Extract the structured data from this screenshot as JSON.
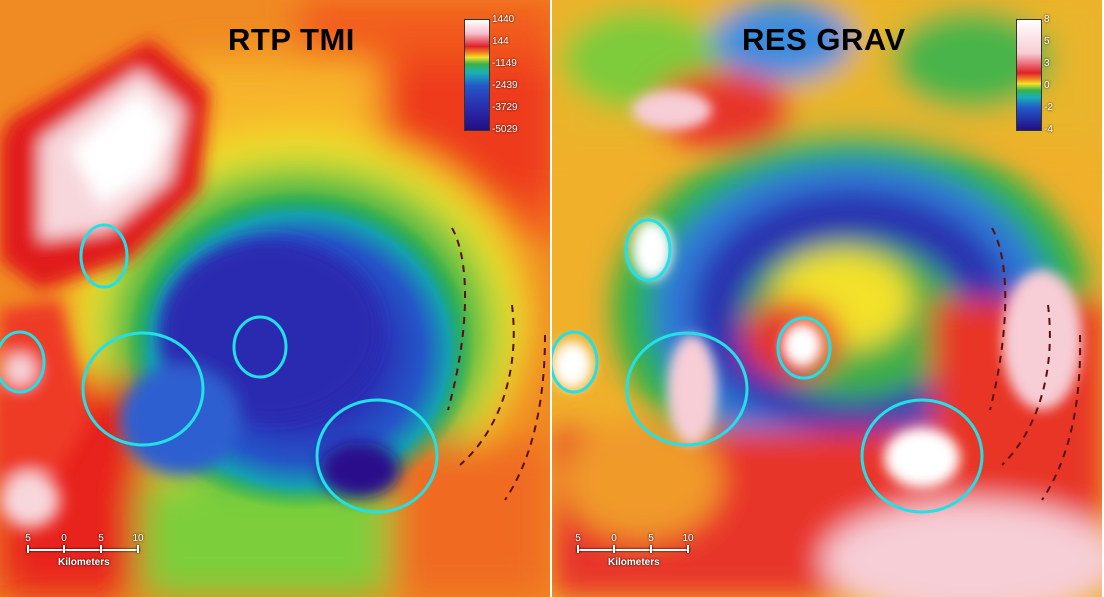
{
  "left_panel": {
    "title": "RTP TMI",
    "legend_ticks": [
      "1440",
      "144",
      "-1149",
      "-2439",
      "-3729",
      "-5029"
    ]
  },
  "right_panel": {
    "title": "RES GRAV",
    "legend_ticks": [
      "8",
      "5",
      "3",
      "0",
      "-2",
      "-4"
    ]
  },
  "scale_bar": {
    "ticks": [
      "5",
      "0",
      "5",
      "10"
    ],
    "unit": "Kilometers"
  },
  "colors": {
    "highlight_circle": "#22e0e8",
    "fault_line": "#5a1010"
  }
}
